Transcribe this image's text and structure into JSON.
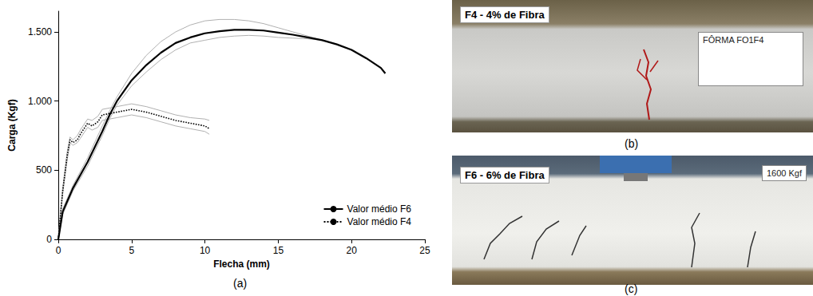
{
  "chart_data": {
    "type": "line",
    "xlabel": "Flecha (mm)",
    "ylabel": "Carga (Kgf)",
    "xlim": [
      0,
      25
    ],
    "xticks": [
      0,
      5,
      10,
      15,
      20,
      25
    ],
    "ylim": [
      0,
      1650
    ],
    "yticks": [
      0,
      500,
      {
        "value": 1000,
        "label": "1.000"
      },
      {
        "value": 1500,
        "label": "1.500"
      }
    ],
    "grid": false,
    "legend": "lower right",
    "series": [
      {
        "name": "Valor médio F6",
        "color": "#000000",
        "line_style": "solid",
        "x": [
          0,
          0.3,
          1,
          2,
          3,
          3.5,
          4,
          5,
          6,
          7,
          8,
          9,
          10,
          11,
          12,
          13,
          14,
          15,
          16,
          17,
          18,
          19,
          20,
          21,
          22,
          22.3
        ],
        "values": [
          0,
          200,
          370,
          560,
          780,
          900,
          1000,
          1150,
          1260,
          1350,
          1420,
          1460,
          1490,
          1505,
          1515,
          1515,
          1510,
          1495,
          1480,
          1460,
          1440,
          1410,
          1370,
          1310,
          1240,
          1200
        ],
        "envelope_upper": [
          0,
          220,
          390,
          590,
          820,
          930,
          1030,
          1200,
          1330,
          1430,
          1500,
          1550,
          1580,
          1590,
          1590,
          1580,
          1560,
          1530,
          1500,
          1470,
          1440,
          1410,
          1370,
          1310,
          1240,
          1200
        ],
        "envelope_lower": [
          0,
          180,
          350,
          530,
          750,
          870,
          970,
          1110,
          1210,
          1300,
          1370,
          1420,
          1440,
          1460,
          1470,
          1475,
          1470,
          1460,
          1455,
          1450,
          1440,
          1410,
          1370,
          1310,
          1240,
          1200
        ]
      },
      {
        "name": "Valor médio F4",
        "color": "#000000",
        "line_style": "dotted",
        "x": [
          0,
          0.3,
          0.6,
          0.8,
          1,
          1.3,
          1.5,
          2,
          2.3,
          2.7,
          3,
          3.5,
          4,
          5,
          6,
          7,
          8,
          9,
          10,
          10.3
        ],
        "values": [
          0,
          350,
          600,
          720,
          700,
          720,
          760,
          840,
          820,
          850,
          900,
          910,
          920,
          940,
          920,
          890,
          860,
          840,
          820,
          800
        ],
        "envelope_upper": [
          0,
          370,
          630,
          740,
          720,
          750,
          790,
          870,
          860,
          890,
          940,
          950,
          960,
          980,
          960,
          930,
          900,
          880,
          870,
          860
        ],
        "envelope_lower": [
          0,
          330,
          570,
          700,
          680,
          700,
          730,
          810,
          790,
          810,
          860,
          870,
          880,
          900,
          880,
          850,
          820,
          800,
          780,
          760
        ]
      }
    ],
    "panel_label": "(a)"
  },
  "photos": [
    {
      "panel_label": "(b)",
      "tag": "F4 - 4% de Fibra",
      "sign": "FÔRMA FO1F4"
    },
    {
      "panel_label": "(c)",
      "tag": "F6 - 6% de Fibra",
      "sign": "1600 Kgf"
    }
  ]
}
